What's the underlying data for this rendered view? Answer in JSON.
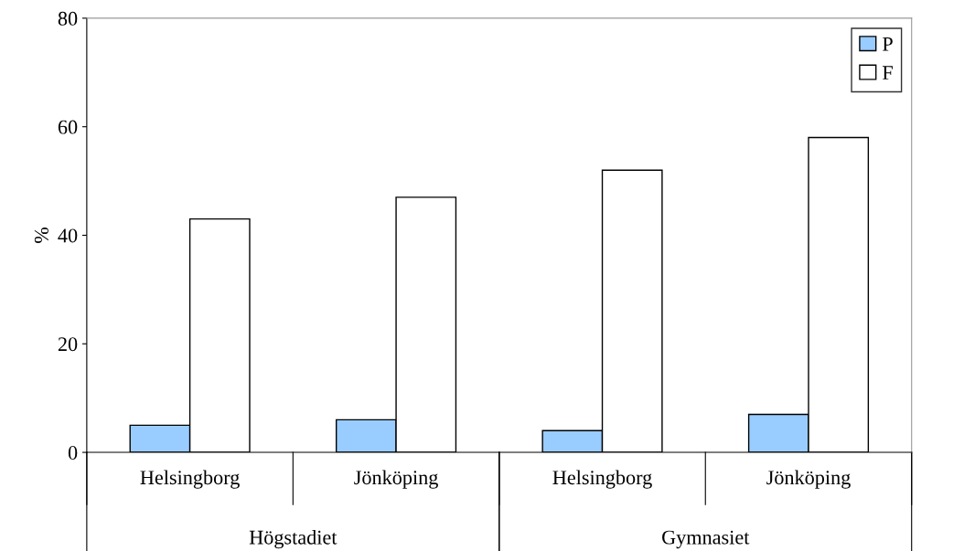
{
  "chart_data": {
    "type": "bar",
    "ylabel": "%",
    "categories": [
      "Helsingborg",
      "Jönköping",
      "Helsingborg",
      "Jönköping"
    ],
    "series": [
      {
        "name": "P",
        "color": "#99ccff",
        "values": [
          5,
          6,
          4,
          7
        ]
      },
      {
        "name": "F",
        "color": "#ffffff",
        "values": [
          43,
          47,
          52,
          58
        ]
      }
    ],
    "annotations": [
      "Högstadiet",
      "Gymnasiet"
    ],
    "ylim": [
      0,
      80
    ],
    "yticks": [
      0,
      20,
      40,
      60,
      80
    ],
    "grid": false,
    "legend": "right"
  }
}
